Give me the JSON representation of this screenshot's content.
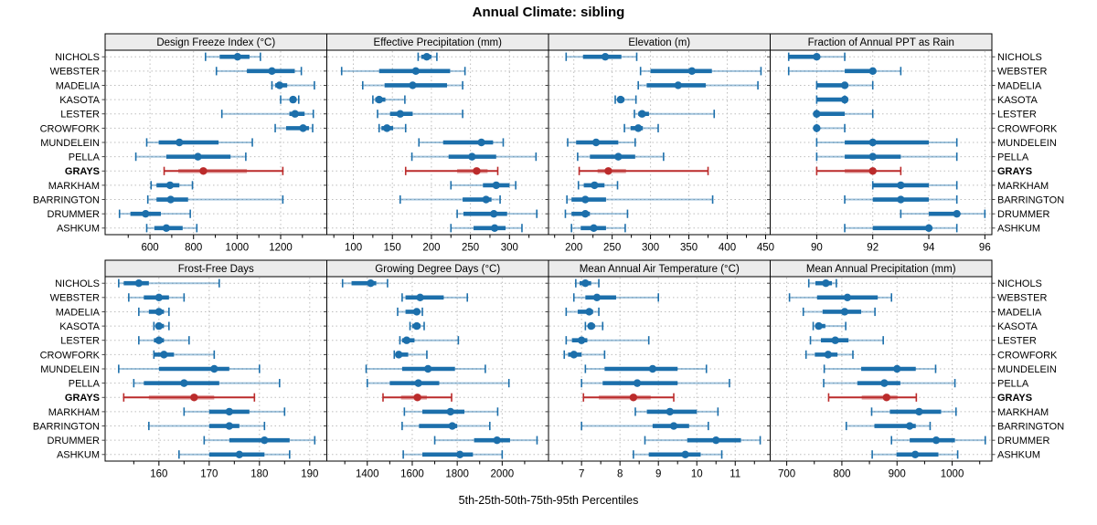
{
  "title": "Annual Climate: sibling",
  "footer": "5th-25th-50th-75th-95th Percentiles",
  "sites": [
    "NICHOLS",
    "WEBSTER",
    "MADELIA",
    "KASOTA",
    "LESTER",
    "CROWFORK",
    "MUNDELEIN",
    "PELLA",
    "GRAYS",
    "MARKHAM",
    "BARRINGTON",
    "DRUMMER",
    "ASHKUM"
  ],
  "highlight_site": "GRAYS",
  "colors": {
    "series": "#1c6fab",
    "series_light": "rgba(28,111,171,0.42)",
    "highlight": "#bb2b2b",
    "highlight_light": "rgba(187,43,43,0.45)",
    "strip_bg": "#ececec",
    "panel_border": "#000000",
    "grid": "#bdbdbd",
    "text": "#000000"
  },
  "chart_data": {
    "type": "dotplot-intervals",
    "percentiles": [
      5,
      25,
      50,
      75,
      95
    ],
    "legend_note": "5th-25th-50th-75th-95th Percentiles",
    "panels": [
      {
        "title": "Design Freeze Index (°C)",
        "row": 0,
        "col": 0,
        "domain": [
          394,
          1412
        ],
        "ticks": [
          600,
          800,
          1000,
          1200
        ],
        "minor_ticks": [
          500,
          700,
          900,
          1100,
          1300
        ],
        "values": [
          [
            855,
            920,
            1002,
            1057,
            1107
          ],
          [
            905,
            1045,
            1160,
            1265,
            1295
          ],
          [
            1160,
            1175,
            1195,
            1230,
            1355
          ],
          [
            1200,
            1243,
            1257,
            1270,
            1283
          ],
          [
            930,
            1240,
            1266,
            1310,
            1350
          ],
          [
            1175,
            1225,
            1303,
            1330,
            1347
          ],
          [
            585,
            640,
            735,
            915,
            1070
          ],
          [
            535,
            675,
            820,
            970,
            1040
          ],
          [
            665,
            730,
            845,
            1045,
            1210
          ],
          [
            605,
            630,
            692,
            735,
            795
          ],
          [
            590,
            630,
            695,
            775,
            1210
          ],
          [
            460,
            510,
            580,
            650,
            785
          ],
          [
            585,
            620,
            675,
            750,
            815
          ]
        ]
      },
      {
        "title": "Effective Precipitation (mm)",
        "row": 0,
        "col": 1,
        "domain": [
          66,
          350
        ],
        "ticks": [
          100,
          150,
          200,
          250,
          300
        ],
        "minor_ticks": [
          75,
          125,
          175,
          225,
          275,
          325
        ],
        "values": [
          [
            183,
            187,
            194,
            200,
            207
          ],
          [
            85,
            133,
            180,
            224,
            243
          ],
          [
            112,
            140,
            176,
            220,
            240
          ],
          [
            125,
            128,
            133,
            141,
            166
          ],
          [
            131,
            147,
            160,
            176,
            240
          ],
          [
            133,
            136,
            143,
            151,
            167
          ],
          [
            184,
            215,
            264,
            279,
            292
          ],
          [
            175,
            222,
            252,
            283,
            334
          ],
          [
            167,
            233,
            258,
            272,
            285
          ],
          [
            225,
            266,
            283,
            300,
            308
          ],
          [
            160,
            240,
            270,
            277,
            288
          ],
          [
            233,
            241,
            280,
            297,
            335
          ],
          [
            225,
            254,
            281,
            295,
            316
          ]
        ]
      },
      {
        "title": "Elevation (m)",
        "row": 0,
        "col": 2,
        "domain": [
          167,
          456
        ],
        "ticks": [
          200,
          250,
          300,
          350,
          400,
          450
        ],
        "minor_ticks": [
          175,
          225,
          275,
          325,
          375,
          425
        ],
        "values": [
          [
            190,
            212,
            241,
            262,
            282
          ],
          [
            287,
            300,
            354,
            380,
            444
          ],
          [
            284,
            295,
            336,
            372,
            440
          ],
          [
            254,
            257,
            261,
            266,
            281
          ],
          [
            279,
            284,
            289,
            298,
            383
          ],
          [
            266,
            274,
            284,
            290,
            310
          ],
          [
            192,
            203,
            229,
            258,
            280
          ],
          [
            205,
            221,
            258,
            280,
            317
          ],
          [
            207,
            231,
            245,
            268,
            375
          ],
          [
            206,
            213,
            227,
            240,
            257
          ],
          [
            191,
            197,
            215,
            242,
            381
          ],
          [
            189,
            197,
            215,
            221,
            270
          ],
          [
            197,
            209,
            226,
            242,
            267
          ]
        ]
      },
      {
        "title": "Fraction of Annual PPT as Rain",
        "row": 0,
        "col": 3,
        "domain": [
          88.34,
          96.25
        ],
        "ticks": [
          90,
          92,
          94,
          96
        ],
        "minor_ticks": [],
        "values": [
          [
            89,
            89,
            90,
            90,
            91
          ],
          [
            89,
            91,
            92,
            92,
            93
          ],
          [
            90,
            90,
            91,
            91,
            92
          ],
          [
            90,
            90,
            91,
            91,
            91
          ],
          [
            90,
            90,
            90,
            91,
            92
          ],
          [
            90,
            90,
            90,
            90,
            91
          ],
          [
            90,
            91,
            92,
            94,
            95
          ],
          [
            90,
            91,
            92,
            93,
            95
          ],
          [
            90,
            91,
            92,
            92,
            93
          ],
          [
            92,
            92,
            93,
            94,
            95
          ],
          [
            91,
            92,
            93,
            94,
            95
          ],
          [
            93,
            94,
            95,
            95,
            96
          ],
          [
            91,
            92,
            94,
            94,
            95
          ]
        ]
      },
      {
        "title": "Frost-Free Days",
        "row": 1,
        "col": 0,
        "domain": [
          149.3,
          193.4
        ],
        "ticks": [
          160,
          170,
          180,
          190
        ],
        "minor_ticks": [
          155,
          165,
          175,
          185
        ],
        "values": [
          [
            152,
            153,
            156,
            158,
            172
          ],
          [
            154,
            157,
            160,
            162,
            165
          ],
          [
            156,
            158,
            160,
            161,
            162
          ],
          [
            159,
            160,
            160,
            161,
            162
          ],
          [
            156,
            159,
            160,
            161,
            166
          ],
          [
            159,
            159,
            161,
            163,
            171
          ],
          [
            152,
            160,
            171,
            174,
            180
          ],
          [
            155,
            157,
            165,
            172,
            184
          ],
          [
            153,
            158,
            167,
            171,
            179
          ],
          [
            165,
            170,
            174,
            178,
            185
          ],
          [
            158,
            170,
            174,
            176,
            181
          ],
          [
            169,
            174,
            181,
            186,
            191
          ],
          [
            164,
            170,
            176,
            181,
            186
          ]
        ]
      },
      {
        "title": "Growing Degree Days (°C)",
        "row": 1,
        "col": 1,
        "domain": [
          1220,
          2206
        ],
        "ticks": [
          1400,
          1600,
          1800,
          2000
        ],
        "minor_ticks": [
          1300,
          1500,
          1700,
          1900,
          2100
        ],
        "values": [
          [
            1290,
            1330,
            1415,
            1440,
            1490
          ],
          [
            1555,
            1570,
            1635,
            1740,
            1845
          ],
          [
            1535,
            1570,
            1620,
            1630,
            1645
          ],
          [
            1590,
            1600,
            1620,
            1637,
            1653
          ],
          [
            1545,
            1555,
            1575,
            1610,
            1805
          ],
          [
            1520,
            1527,
            1540,
            1582,
            1665
          ],
          [
            1395,
            1555,
            1670,
            1790,
            1925
          ],
          [
            1400,
            1500,
            1627,
            1720,
            2030
          ],
          [
            1470,
            1550,
            1623,
            1665,
            1775
          ],
          [
            1565,
            1645,
            1770,
            1832,
            1980
          ],
          [
            1555,
            1630,
            1778,
            1800,
            1945
          ],
          [
            1700,
            1875,
            1977,
            2035,
            2155
          ],
          [
            1560,
            1645,
            1812,
            1870,
            2000
          ]
        ]
      },
      {
        "title": "Mean Annual Air Temperature (°C)",
        "row": 1,
        "col": 2,
        "domain": [
          6.14,
          11.91
        ],
        "ticks": [
          7,
          8,
          9,
          10,
          11
        ],
        "minor_ticks": [
          6.5,
          7.5,
          8.5,
          9.5,
          10.5,
          11.5
        ],
        "values": [
          [
            6.85,
            6.95,
            7.1,
            7.25,
            7.45
          ],
          [
            6.8,
            7.1,
            7.4,
            7.9,
            9.0
          ],
          [
            6.6,
            6.9,
            7.2,
            7.3,
            7.45
          ],
          [
            7.1,
            7.2,
            7.25,
            7.35,
            7.55
          ],
          [
            6.6,
            6.75,
            7.0,
            7.15,
            8.75
          ],
          [
            6.55,
            6.65,
            6.8,
            7.0,
            7.6
          ],
          [
            7.1,
            7.6,
            8.85,
            9.5,
            10.25
          ],
          [
            7.0,
            7.55,
            8.45,
            9.5,
            10.85
          ],
          [
            7.05,
            7.45,
            8.35,
            8.8,
            9.4
          ],
          [
            8.4,
            8.7,
            9.3,
            10.0,
            10.55
          ],
          [
            7.0,
            8.85,
            9.4,
            9.8,
            10.3
          ],
          [
            8.65,
            9.75,
            10.5,
            11.15,
            11.65
          ],
          [
            8.35,
            8.75,
            9.7,
            10.1,
            10.65
          ]
        ]
      },
      {
        "title": "Mean Annual Precipitation (mm)",
        "row": 1,
        "col": 3,
        "domain": [
          670,
          1072
        ],
        "ticks": [
          700,
          800,
          900,
          1000
        ],
        "minor_ticks": [
          750,
          850,
          950,
          1050
        ],
        "values": [
          [
            740,
            752,
            771,
            782,
            790
          ],
          [
            705,
            755,
            810,
            865,
            890
          ],
          [
            730,
            765,
            805,
            835,
            860
          ],
          [
            748,
            752,
            758,
            770,
            807
          ],
          [
            743,
            762,
            788,
            812,
            875
          ],
          [
            735,
            751,
            775,
            792,
            820
          ],
          [
            768,
            835,
            900,
            934,
            970
          ],
          [
            767,
            828,
            877,
            906,
            1005
          ],
          [
            776,
            836,
            881,
            901,
            935
          ],
          [
            854,
            887,
            940,
            980,
            1007
          ],
          [
            808,
            859,
            923,
            934,
            960
          ],
          [
            890,
            923,
            971,
            1005,
            1060
          ],
          [
            855,
            899,
            933,
            975,
            1010
          ]
        ]
      }
    ]
  }
}
